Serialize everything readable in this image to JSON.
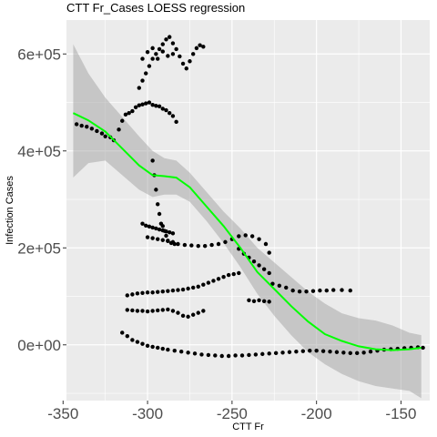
{
  "chart_data": {
    "type": "scatter",
    "title": "CTT Fr_Cases LOESS regression",
    "xlabel": "CTT Fr",
    "ylabel": "Infection Cases",
    "xlim": [
      -348,
      -133
    ],
    "ylim": [
      -115000,
      670000
    ],
    "x_ticks": [
      -350,
      -300,
      -250,
      -200,
      -150
    ],
    "x_tick_labels": [
      "-350",
      "-300",
      "-250",
      "-200",
      "-150"
    ],
    "y_ticks": [
      0,
      200000,
      400000,
      600000
    ],
    "y_tick_labels": [
      "0e+00",
      "2e+05",
      "4e+05",
      "6e+05"
    ],
    "grid": true,
    "colors": {
      "panel": "#ebebeb",
      "grid": "#ffffff",
      "points": "#000000",
      "fit": "#00ff00",
      "band": "#999999"
    },
    "series": [
      {
        "type": "scatter",
        "points": [
          [
            -342,
            455000
          ],
          [
            -339,
            452000
          ],
          [
            -336,
            450000
          ],
          [
            -333,
            446000
          ],
          [
            -330,
            441000
          ],
          [
            -327,
            436000
          ],
          [
            -325,
            430000
          ],
          [
            -322,
            428000
          ],
          [
            -320,
            422000
          ],
          [
            -317,
            444000
          ],
          [
            -315,
            462000
          ],
          [
            -313,
            475000
          ],
          [
            -311,
            478000
          ],
          [
            -309,
            482000
          ],
          [
            -307,
            490000
          ],
          [
            -305,
            494000
          ],
          [
            -303,
            496000
          ],
          [
            -301,
            498000
          ],
          [
            -299,
            500000
          ],
          [
            -297,
            495000
          ],
          [
            -295,
            493000
          ],
          [
            -293,
            492000
          ],
          [
            -291,
            487000
          ],
          [
            -289,
            484000
          ],
          [
            -287,
            478000
          ],
          [
            -285,
            472000
          ],
          [
            -283,
            460000
          ],
          [
            -305,
            530000
          ],
          [
            -303,
            545000
          ],
          [
            -301,
            560000
          ],
          [
            -299,
            575000
          ],
          [
            -297,
            590000
          ],
          [
            -295,
            600000
          ],
          [
            -293,
            610000
          ],
          [
            -291,
            620000
          ],
          [
            -289,
            630000
          ],
          [
            -287,
            635000
          ],
          [
            -285,
            622000
          ],
          [
            -283,
            610000
          ],
          [
            -281,
            595000
          ],
          [
            -279,
            580000
          ],
          [
            -277,
            570000
          ],
          [
            -275,
            585000
          ],
          [
            -273,
            600000
          ],
          [
            -271,
            612000
          ],
          [
            -269,
            618000
          ],
          [
            -267,
            615000
          ],
          [
            -303,
            590000
          ],
          [
            -300,
            604000
          ],
          [
            -297,
            612000
          ],
          [
            -294,
            590000
          ],
          [
            -291,
            605000
          ],
          [
            -288,
            596000
          ],
          [
            -285,
            600000
          ],
          [
            -297,
            380000
          ],
          [
            -296,
            350000
          ],
          [
            -295,
            320000
          ],
          [
            -294,
            290000
          ],
          [
            -293,
            270000
          ],
          [
            -292,
            250000
          ],
          [
            -291,
            245000
          ],
          [
            -290,
            235000
          ],
          [
            -289,
            225000
          ],
          [
            -288,
            215000
          ],
          [
            -286,
            210000
          ],
          [
            -284,
            208000
          ],
          [
            -303,
            250000
          ],
          [
            -301,
            246000
          ],
          [
            -299,
            244000
          ],
          [
            -297,
            242000
          ],
          [
            -295,
            240000
          ],
          [
            -293,
            238000
          ],
          [
            -291,
            236000
          ],
          [
            -289,
            234000
          ],
          [
            -287,
            232000
          ],
          [
            -285,
            230000
          ],
          [
            -300,
            222000
          ],
          [
            -297,
            220000
          ],
          [
            -294,
            218000
          ],
          [
            -291,
            216000
          ],
          [
            -288,
            214000
          ],
          [
            -285,
            212000
          ],
          [
            -282,
            208000
          ],
          [
            -278,
            206000
          ],
          [
            -274,
            205000
          ],
          [
            -270,
            204000
          ],
          [
            -266,
            204000
          ],
          [
            -262,
            206000
          ],
          [
            -258,
            208000
          ],
          [
            -254,
            212000
          ],
          [
            -250,
            218000
          ],
          [
            -246,
            224000
          ],
          [
            -242,
            226000
          ],
          [
            -238,
            224000
          ],
          [
            -234,
            218000
          ],
          [
            -230,
            208000
          ],
          [
            -228,
            190000
          ],
          [
            -246,
            198000
          ],
          [
            -243,
            188000
          ],
          [
            -240,
            180000
          ],
          [
            -237,
            172000
          ],
          [
            -234,
            164000
          ],
          [
            -231,
            156000
          ],
          [
            -228,
            148000
          ],
          [
            -312,
            102000
          ],
          [
            -309,
            104000
          ],
          [
            -306,
            106000
          ],
          [
            -303,
            107000
          ],
          [
            -300,
            108000
          ],
          [
            -297,
            108000
          ],
          [
            -294,
            109000
          ],
          [
            -291,
            110000
          ],
          [
            -288,
            111000
          ],
          [
            -285,
            112000
          ],
          [
            -282,
            113000
          ],
          [
            -279,
            114000
          ],
          [
            -276,
            116000
          ],
          [
            -273,
            118000
          ],
          [
            -270,
            120000
          ],
          [
            -267,
            124000
          ],
          [
            -264,
            128000
          ],
          [
            -261,
            132000
          ],
          [
            -258,
            136000
          ],
          [
            -255,
            140000
          ],
          [
            -252,
            144000
          ],
          [
            -249,
            146000
          ],
          [
            -246,
            148000
          ],
          [
            -312,
            72000
          ],
          [
            -309,
            71000
          ],
          [
            -306,
            70000
          ],
          [
            -303,
            70000
          ],
          [
            -300,
            69000
          ],
          [
            -297,
            70000
          ],
          [
            -294,
            71000
          ],
          [
            -291,
            72000
          ],
          [
            -288,
            73000
          ],
          [
            -285,
            70000
          ],
          [
            -282,
            66000
          ],
          [
            -279,
            60000
          ],
          [
            -276,
            58000
          ],
          [
            -273,
            62000
          ],
          [
            -270,
            66000
          ],
          [
            -267,
            70000
          ],
          [
            -240,
            92000
          ],
          [
            -237,
            90000
          ],
          [
            -234,
            92000
          ],
          [
            -231,
            90000
          ],
          [
            -228,
            89000
          ],
          [
            -226,
            126000
          ],
          [
            -222,
            122000
          ],
          [
            -218,
            118000
          ],
          [
            -214,
            112000
          ],
          [
            -210,
            110000
          ],
          [
            -206,
            110000
          ],
          [
            -202,
            111000
          ],
          [
            -198,
            112000
          ],
          [
            -194,
            112000
          ],
          [
            -190,
            113000
          ],
          [
            -185,
            113000
          ],
          [
            -180,
            112000
          ],
          [
            -315,
            25000
          ],
          [
            -312,
            18000
          ],
          [
            -309,
            10000
          ],
          [
            -306,
            6000
          ],
          [
            -303,
            2000
          ],
          [
            -300,
            -2000
          ],
          [
            -297,
            -4000
          ],
          [
            -294,
            -6000
          ],
          [
            -291,
            -8000
          ],
          [
            -288,
            -10000
          ],
          [
            -284,
            -12000
          ],
          [
            -280,
            -14000
          ],
          [
            -276,
            -16000
          ],
          [
            -272,
            -18000
          ],
          [
            -268,
            -20000
          ],
          [
            -264,
            -21000
          ],
          [
            -260,
            -22000
          ],
          [
            -256,
            -23000
          ],
          [
            -252,
            -23000
          ],
          [
            -248,
            -22000
          ],
          [
            -244,
            -22000
          ],
          [
            -240,
            -21000
          ],
          [
            -236,
            -20000
          ],
          [
            -232,
            -19000
          ],
          [
            -228,
            -18000
          ],
          [
            -224,
            -17000
          ],
          [
            -220,
            -16000
          ],
          [
            -216,
            -15000
          ],
          [
            -212,
            -14000
          ],
          [
            -208,
            -13000
          ],
          [
            -204,
            -12000
          ],
          [
            -200,
            -12000
          ],
          [
            -196,
            -13000
          ],
          [
            -192,
            -14000
          ],
          [
            -188,
            -15000
          ],
          [
            -184,
            -16000
          ],
          [
            -180,
            -17000
          ],
          [
            -176,
            -17000
          ],
          [
            -172,
            -16000
          ],
          [
            -168,
            -14000
          ],
          [
            -164,
            -12000
          ],
          [
            -160,
            -10000
          ],
          [
            -156,
            -9000
          ],
          [
            -152,
            -8000
          ],
          [
            -148,
            -7000
          ],
          [
            -144,
            -6000
          ],
          [
            -140,
            -5000
          ],
          [
            -137,
            -6000
          ]
        ]
      },
      {
        "type": "line",
        "points": [
          [
            -344,
            478000
          ],
          [
            -335,
            463000
          ],
          [
            -325,
            440000
          ],
          [
            -315,
            405000
          ],
          [
            -305,
            370000
          ],
          [
            -297,
            350000
          ],
          [
            -290,
            348000
          ],
          [
            -283,
            345000
          ],
          [
            -275,
            325000
          ],
          [
            -265,
            285000
          ],
          [
            -255,
            245000
          ],
          [
            -245,
            200000
          ],
          [
            -235,
            150000
          ],
          [
            -225,
            115000
          ],
          [
            -215,
            80000
          ],
          [
            -205,
            48000
          ],
          [
            -195,
            22000
          ],
          [
            -185,
            8000
          ],
          [
            -175,
            -3000
          ],
          [
            -165,
            -9000
          ],
          [
            -155,
            -11000
          ],
          [
            -145,
            -9000
          ],
          [
            -138,
            -6000
          ]
        ],
        "band_upper": [
          [
            -344,
            620000
          ],
          [
            -335,
            560000
          ],
          [
            -325,
            510000
          ],
          [
            -315,
            470000
          ],
          [
            -305,
            430000
          ],
          [
            -297,
            400000
          ],
          [
            -290,
            385000
          ],
          [
            -283,
            380000
          ],
          [
            -275,
            355000
          ],
          [
            -265,
            315000
          ],
          [
            -255,
            275000
          ],
          [
            -245,
            240000
          ],
          [
            -235,
            200000
          ],
          [
            -225,
            170000
          ],
          [
            -215,
            140000
          ],
          [
            -205,
            110000
          ],
          [
            -195,
            85000
          ],
          [
            -185,
            65000
          ],
          [
            -175,
            55000
          ],
          [
            -165,
            50000
          ],
          [
            -155,
            40000
          ],
          [
            -145,
            25000
          ],
          [
            -138,
            20000
          ]
        ],
        "band_lower": [
          [
            -344,
            345000
          ],
          [
            -335,
            375000
          ],
          [
            -325,
            380000
          ],
          [
            -315,
            350000
          ],
          [
            -305,
            320000
          ],
          [
            -297,
            305000
          ],
          [
            -290,
            310000
          ],
          [
            -283,
            310000
          ],
          [
            -275,
            295000
          ],
          [
            -265,
            255000
          ],
          [
            -255,
            210000
          ],
          [
            -245,
            160000
          ],
          [
            -235,
            105000
          ],
          [
            -225,
            60000
          ],
          [
            -215,
            20000
          ],
          [
            -205,
            -15000
          ],
          [
            -195,
            -40000
          ],
          [
            -185,
            -60000
          ],
          [
            -175,
            -75000
          ],
          [
            -165,
            -85000
          ],
          [
            -155,
            -90000
          ],
          [
            -145,
            -95000
          ],
          [
            -138,
            -110000
          ]
        ]
      }
    ]
  }
}
